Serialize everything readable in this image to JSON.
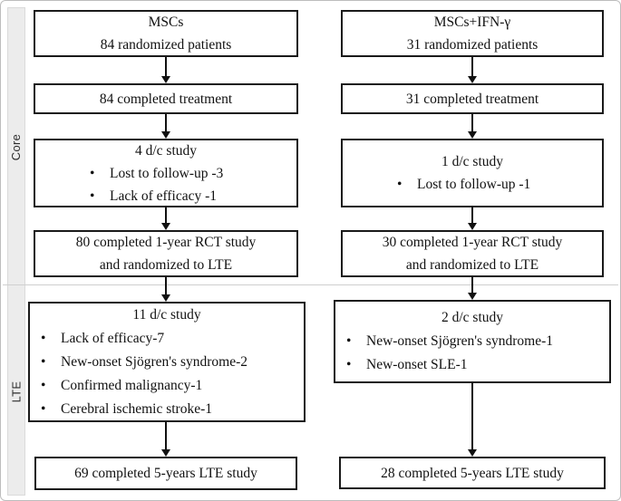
{
  "sidebar": {
    "sections": [
      {
        "label": "Core"
      },
      {
        "label": "LTE"
      }
    ]
  },
  "columns": [
    {
      "id": "mscs",
      "enrollment": {
        "line1": "MSCs",
        "line2": "84 randomized patients"
      },
      "completed_treatment": "84 completed treatment",
      "core_discontinued": {
        "title": "4 d/c study",
        "bullets": [
          "Lost to follow-up -3",
          "Lack of efficacy -1"
        ]
      },
      "completed_rct": {
        "line1": "80 completed 1-year RCT study",
        "line2": "and randomized to LTE"
      },
      "lte_discontinued": {
        "title": "11 d/c study",
        "bullets": [
          "Lack of efficacy-7",
          "New-onset Sjögren's syndrome-2",
          "Confirmed malignancy-1",
          "Cerebral ischemic stroke-1"
        ]
      },
      "completed_lte": "69 completed 5-years LTE study"
    },
    {
      "id": "mscs-ifn-gamma",
      "enrollment": {
        "line1": "MSCs+IFN-γ",
        "line2": "31 randomized patients"
      },
      "completed_treatment": "31 completed treatment",
      "core_discontinued": {
        "title": "1 d/c study",
        "bullets": [
          "Lost to follow-up -1"
        ]
      },
      "completed_rct": {
        "line1": "30 completed 1-year RCT study",
        "line2": "and randomized to LTE"
      },
      "lte_discontinued": {
        "title": "2 d/c study",
        "bullets": [
          "New-onset Sjögren's syndrome-1",
          "New-onset SLE-1"
        ]
      },
      "completed_lte": "28 completed 5-years LTE study"
    }
  ],
  "colors": {
    "box_border": "#1a1a1a",
    "strip_bg": "#ececec",
    "divider": "#cfcfcf",
    "outer_border": "#bdbdbd"
  }
}
